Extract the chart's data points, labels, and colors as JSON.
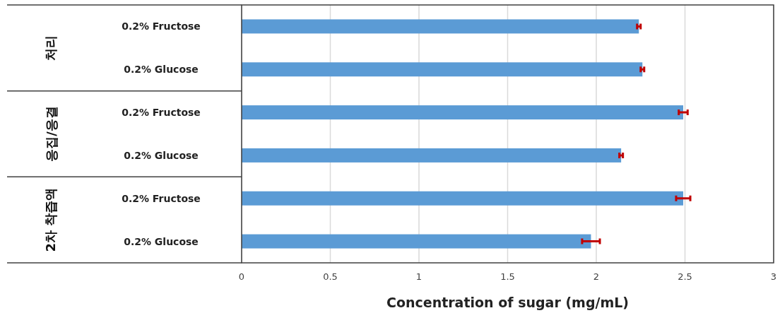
{
  "chart_data": {
    "type": "bar",
    "orientation": "horizontal",
    "categories": [
      "0.2% Fructose",
      "0.2% Glucose",
      "0.2% Fructose",
      "0.2% Glucose",
      "0.2% Fructose",
      "0.2% Glucose"
    ],
    "values": [
      2.24,
      2.26,
      2.49,
      2.14,
      2.49,
      1.97
    ],
    "errors": [
      0.01,
      0.01,
      0.025,
      0.01,
      0.04,
      0.05
    ],
    "color": "#5b9bd5",
    "xlim": [
      0,
      3
    ],
    "xticks": [
      0,
      0.5,
      1,
      1.5,
      2,
      2.5,
      3
    ],
    "xlabel": "Concentration of sugar (mg/mL)",
    "grid": "x",
    "annotations": [
      "처리",
      "응집/응결",
      "2차 착즙액"
    ]
  }
}
